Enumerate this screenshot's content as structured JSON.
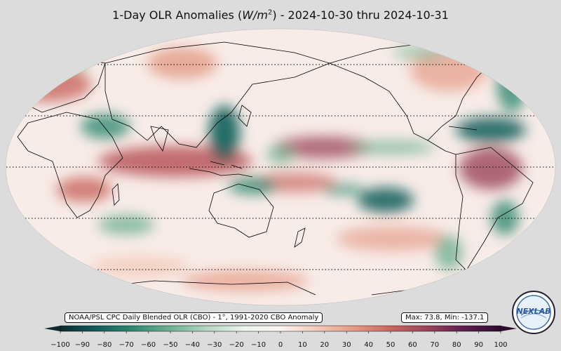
{
  "title": {
    "prefix": "1-Day OLR Anomalies (",
    "unit_base": "W/m",
    "unit_exp": "2",
    "suffix": ") - 2024-10-30 thru 2024-10-31"
  },
  "source_label": "NOAA/PSL CPC Daily Blended OLR (CBO) - 1°, 1991-2020 CBO Anomaly",
  "stats_label": "Max: 73.8,  Min: -137.1",
  "logo_text": "NEXLAB",
  "colorbar": {
    "min": -100,
    "max": 100,
    "ticks": [
      "−100",
      "−90",
      "−80",
      "−70",
      "−60",
      "−50",
      "−40",
      "−30",
      "−20",
      "−10",
      "0",
      "10",
      "20",
      "30",
      "40",
      "50",
      "60",
      "70",
      "80",
      "90",
      "100"
    ],
    "extend": "both",
    "colormap": [
      "#0b2a2e",
      "#125e5a",
      "#2f8a72",
      "#6fb292",
      "#b5d8c2",
      "#eef4ee",
      "#fbf4f1",
      "#f2c9b8",
      "#e49a84",
      "#c9675f",
      "#9a4358",
      "#5e1d4e",
      "#2e0a2e"
    ]
  },
  "colors": {
    "ocean_neutral": "#f9eeea",
    "background": "#dcdcdc",
    "coast": "#000000"
  }
}
